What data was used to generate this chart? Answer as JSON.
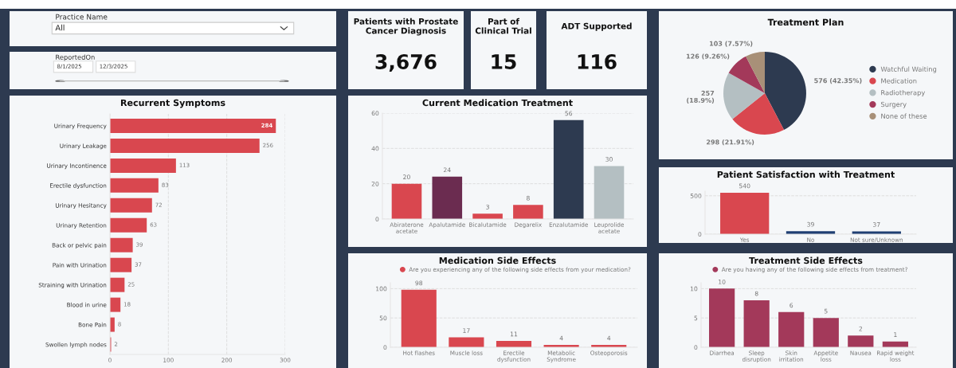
{
  "chart_data": [
    {
      "type": "other",
      "title": "Practice Name",
      "annotations": [
        "All"
      ]
    },
    {
      "type": "other",
      "title": "ReportedOn",
      "annotations": [
        "8/1/2025",
        "12/3/2025"
      ]
    },
    {
      "type": "other",
      "title": "Patients with Prostate Cancer Diagnosis",
      "annotations": [
        "3,676"
      ]
    },
    {
      "type": "other",
      "title": "Part of Clinical Trial",
      "annotations": [
        "15"
      ]
    },
    {
      "type": "other",
      "title": "ADT Supported",
      "annotations": [
        "116"
      ]
    },
    {
      "type": "pie",
      "title": "Treatment Plan",
      "categories": [
        "Watchful Waiting",
        "Medication",
        "Radiotherapy",
        "Surgery",
        "None of these"
      ],
      "values": [
        576,
        298,
        257,
        126,
        103
      ],
      "value_labels": [
        "576 (42.35%)",
        "298 (21.91%)",
        "257 (18.9%)",
        "126 (9.26%)",
        "103 (7.57%)"
      ],
      "colors": [
        "#2d3a50",
        "#d9474f",
        "#b4bfc2",
        "#a3395a",
        "#a89078"
      ],
      "legend": "right"
    },
    {
      "type": "bar",
      "orientation": "horizontal",
      "title": "Recurrent Symptoms",
      "categories": [
        "Urinary Frequency",
        "Urinary Leakage",
        "Urinary Incontinence",
        "Erectile dysfunction",
        "Urinary Hesitancy",
        "Urinary Retention",
        "Back or pelvic pain",
        "Pain with Urination",
        "Straining with Urination",
        "Blood in urine",
        "Bone Pain",
        "Swollen lymph nodes"
      ],
      "values": [
        284,
        256,
        113,
        83,
        72,
        63,
        39,
        37,
        25,
        18,
        8,
        2
      ],
      "color": "#d9474f",
      "data_labels": true,
      "xlim": [
        0,
        300
      ],
      "xticks": [
        0,
        100,
        200,
        300
      ],
      "grid": "x"
    },
    {
      "type": "bar",
      "title": "Current Medication Treatment",
      "categories": [
        "Abiraterone acetate",
        "Apalutamide",
        "Bicalutamide",
        "Degarelix",
        "Enzalutamide",
        "Leuprolide acetate"
      ],
      "values": [
        20,
        24,
        3,
        8,
        56,
        30
      ],
      "colors": [
        "#d9474f",
        "#6b2c50",
        "#d9474f",
        "#d9474f",
        "#2d3a50",
        "#b4bfc2"
      ],
      "data_labels": true,
      "ylim": [
        0,
        60
      ],
      "yticks": [
        0,
        20,
        40,
        60
      ],
      "grid": "y"
    },
    {
      "type": "bar",
      "title": "Patient Satisfaction with Treatment",
      "categories": [
        "Yes",
        "No",
        "Not sure/Unknown"
      ],
      "values": [
        540,
        39,
        37
      ],
      "colors": [
        "#d9474f",
        "#1f3f73",
        "#1f3f73"
      ],
      "data_labels": true,
      "ylim": [
        0,
        560
      ],
      "yticks": [
        0,
        500
      ],
      "grid": "y"
    },
    {
      "type": "bar",
      "title": "Medication Side Effects",
      "categories": [
        "Hot flashes",
        "Muscle loss",
        "Erectile dysfunction",
        "Metabolic Syndrome",
        "Osteoporosis"
      ],
      "series": [
        {
          "name": "Are you experiencing any of the following side effects from your medication?",
          "color": "#d9474f",
          "values": [
            98,
            17,
            11,
            4,
            4
          ]
        }
      ],
      "data_labels": true,
      "ylim": [
        0,
        110
      ],
      "yticks": [
        0,
        50,
        100
      ],
      "grid": "y",
      "legend": "top"
    },
    {
      "type": "bar",
      "title": "Treatment Side Effects",
      "categories": [
        "Diarrhea",
        "Sleep disruption",
        "Skin irritation",
        "Appetite loss",
        "Nausea",
        "Rapid weight loss"
      ],
      "series": [
        {
          "name": "Are you having any of the following side effects from treatment?",
          "color": "#a3395a",
          "values": [
            10,
            8,
            6,
            5,
            2,
            1
          ]
        }
      ],
      "data_labels": true,
      "ylim": [
        0,
        11
      ],
      "yticks": [
        0,
        5,
        10
      ],
      "grid": "y",
      "legend": "top"
    }
  ]
}
